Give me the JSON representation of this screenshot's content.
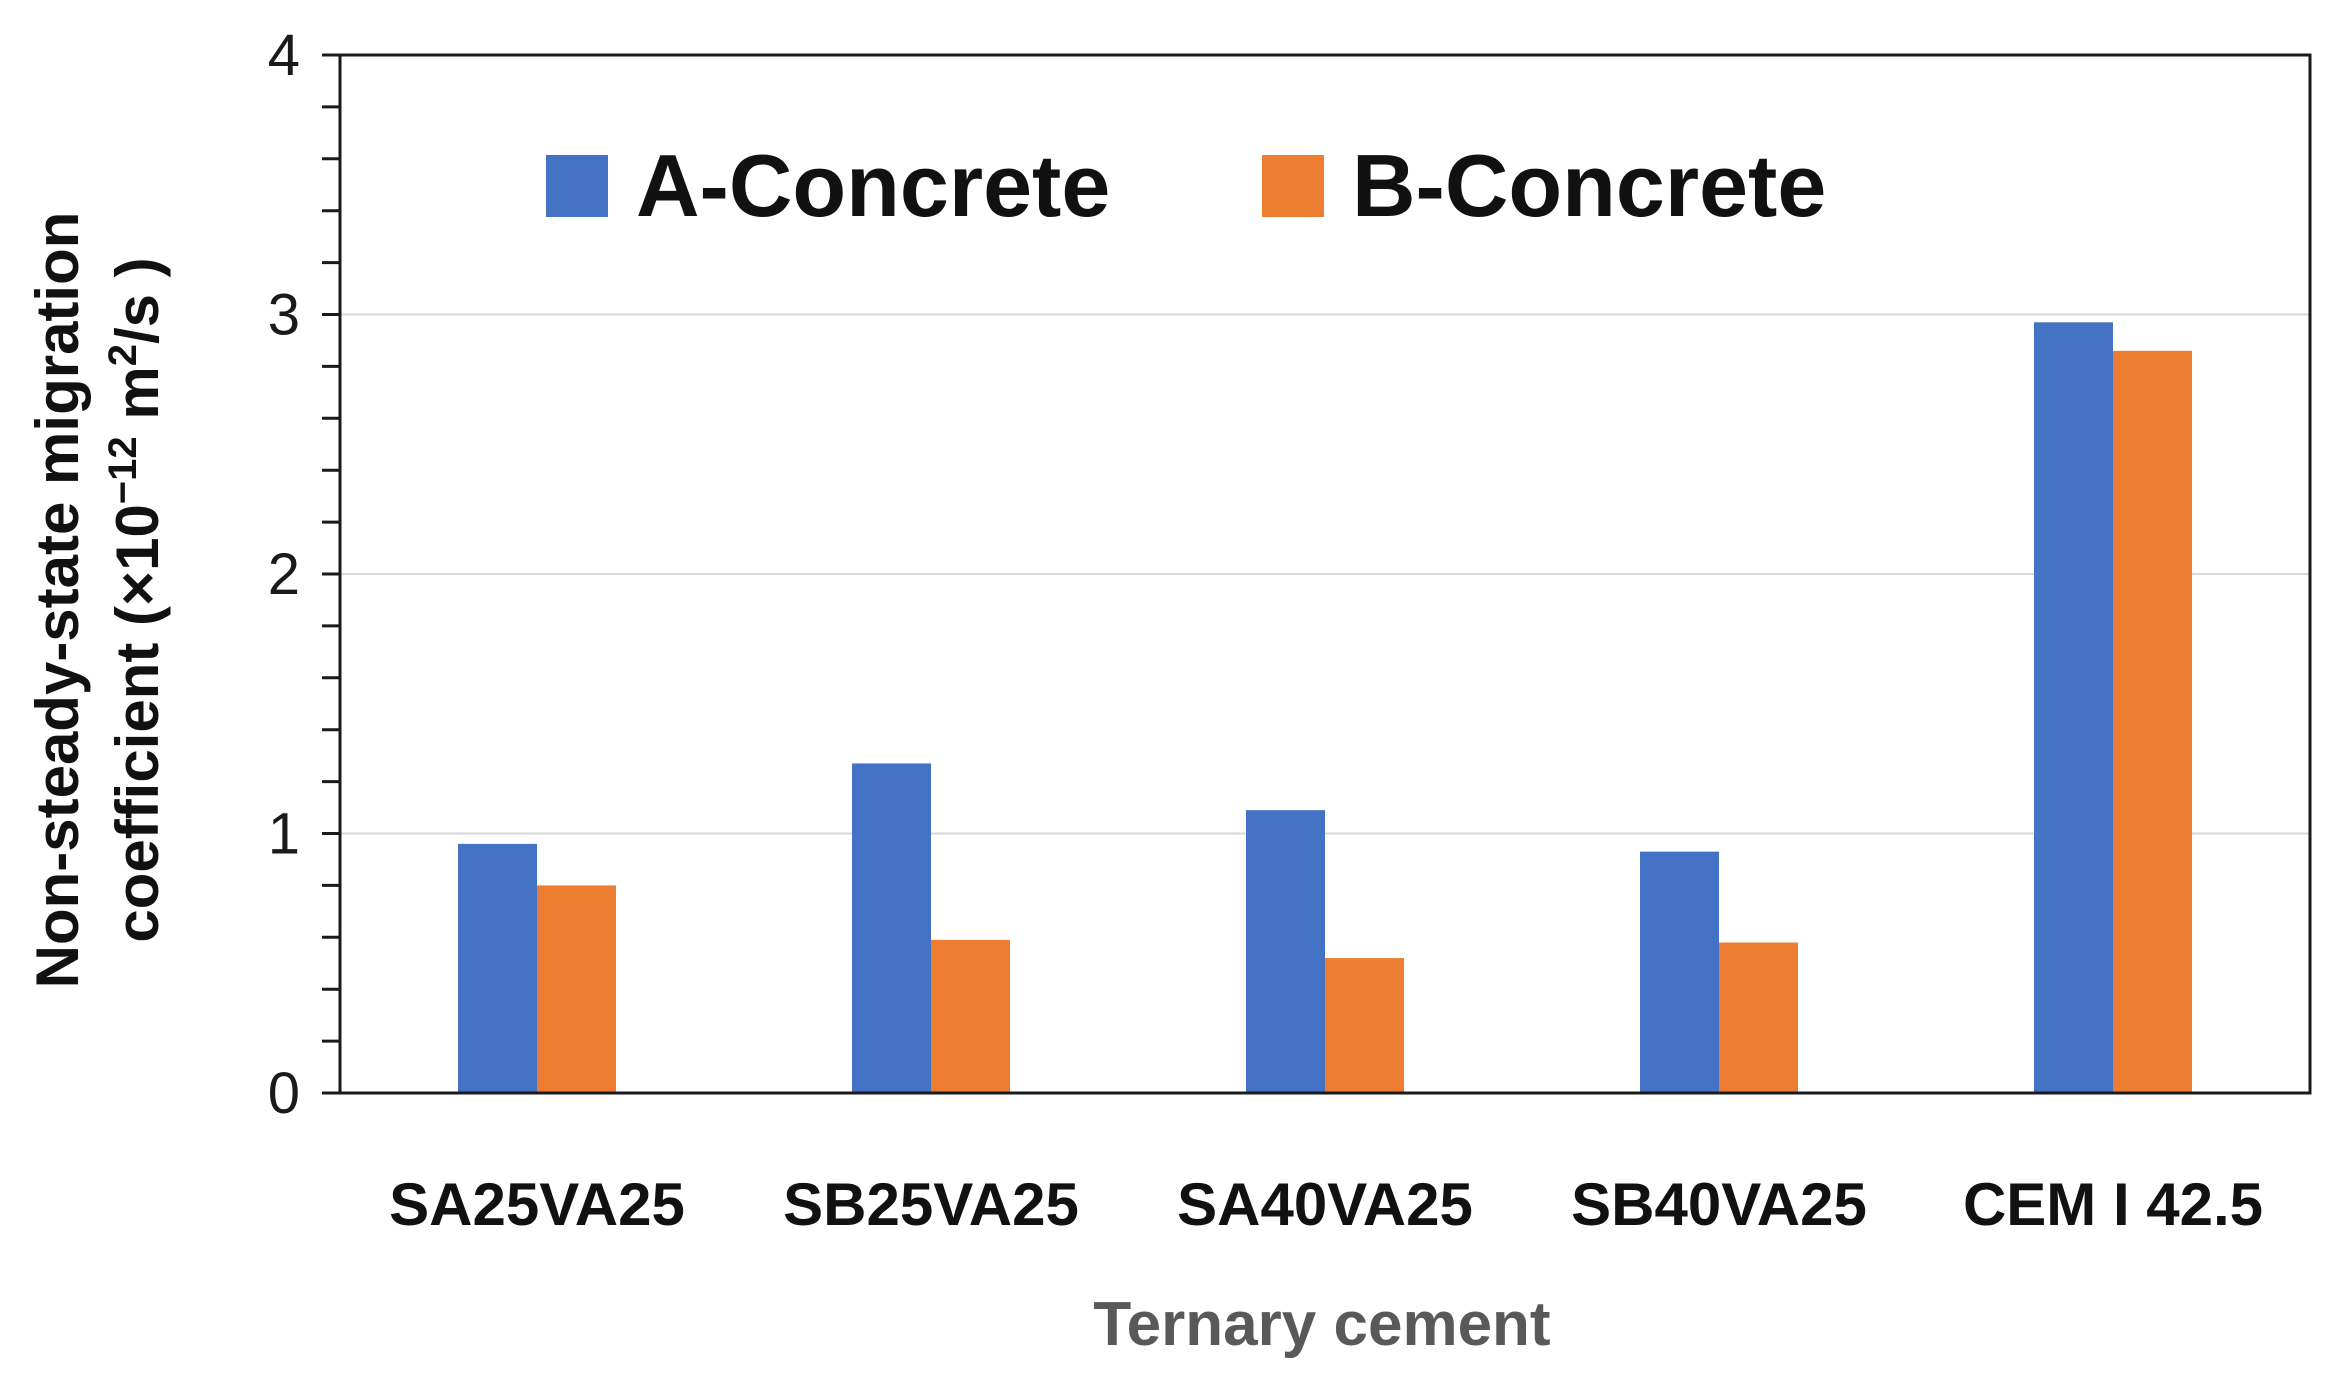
{
  "chart_data": {
    "type": "bar",
    "categories": [
      "SA25VA25",
      "SB25VA25",
      "SA40VA25",
      "SB40VA25",
      "CEM I 42.5"
    ],
    "series": [
      {
        "name": "A-Concrete",
        "color": "#4472C4",
        "values": [
          0.96,
          1.27,
          1.09,
          0.93,
          2.97
        ]
      },
      {
        "name": "B-Concrete",
        "color": "#ED7D31",
        "values": [
          0.8,
          0.59,
          0.52,
          0.58,
          2.86
        ]
      }
    ],
    "xlabel": "Ternary cement",
    "ylabel_line1": "Non-steady-state migration",
    "ylabel_line2_prefix": "coefficient (×10",
    "ylabel_exp1": "−12",
    "ylabel_mid": " m",
    "ylabel_exp2": "2",
    "ylabel_suffix": "/s )",
    "ylim": [
      0,
      4
    ],
    "yticks": [
      0,
      1,
      2,
      3,
      4
    ],
    "minor_tick_step": 0.2,
    "grid": true,
    "legend_position": "top"
  }
}
